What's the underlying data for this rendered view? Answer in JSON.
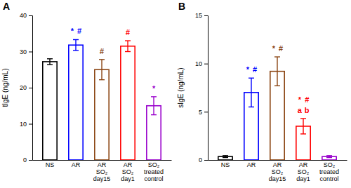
{
  "chart_data": [
    {
      "type": "bar",
      "title": "A",
      "ylabel": "tIgE (ng/mL)",
      "categories": [
        "NS",
        "AR",
        "AR\nSO₂\nday15",
        "AR\nSO₂\nday1",
        "SO₂\ntreated\ncontrol"
      ],
      "values": [
        27.2,
        31.8,
        25.0,
        31.5,
        15.0
      ],
      "errors": [
        0.8,
        1.5,
        2.8,
        1.5,
        2.5
      ],
      "colors": [
        "#000000",
        "#0000ff",
        "#8B4513",
        "#ff0000",
        "#9900cc"
      ],
      "annotations": [
        [],
        [
          {
            "text": "*",
            "color": "#0000ff"
          },
          {
            "text": "#",
            "color": "#0000ff"
          }
        ],
        [
          {
            "text": "#",
            "color": "#8B4513"
          }
        ],
        [
          {
            "text": "#",
            "color": "#ff0000"
          }
        ],
        [
          {
            "text": "*",
            "color": "#9900cc"
          }
        ]
      ],
      "ylim": [
        0,
        40
      ],
      "yticks": [
        0,
        10,
        20,
        30,
        40
      ],
      "grid": false
    },
    {
      "type": "bar",
      "title": "B",
      "ylabel": "sIgE (ng/mL)",
      "categories": [
        "NS",
        "AR",
        "AR\nSO₂\nday15",
        "AR\nSO₂\nday1",
        "SO₂\ntreated\ncontrol"
      ],
      "values": [
        0.35,
        7.0,
        9.2,
        3.5,
        0.35
      ],
      "errors": [
        0.1,
        1.5,
        1.5,
        0.8,
        0.1
      ],
      "colors": [
        "#000000",
        "#0000ff",
        "#8B4513",
        "#ff0000",
        "#9900cc"
      ],
      "annotations": [
        [],
        [
          {
            "text": "*",
            "color": "#0000ff"
          },
          {
            "text": "#",
            "color": "#0000ff"
          }
        ],
        [
          {
            "text": "*",
            "color": "#8B4513"
          },
          {
            "text": "#",
            "color": "#8B4513"
          }
        ],
        [
          {
            "text": "*",
            "color": "#ff0000"
          },
          {
            "text": "#",
            "color": "#ff0000"
          },
          {
            "text": "a",
            "color": "#ff0000"
          },
          {
            "text": "b",
            "color": "#ff0000"
          }
        ],
        []
      ],
      "ylim": [
        0,
        15
      ],
      "yticks": [
        0,
        5,
        10,
        15
      ],
      "grid": false
    }
  ]
}
